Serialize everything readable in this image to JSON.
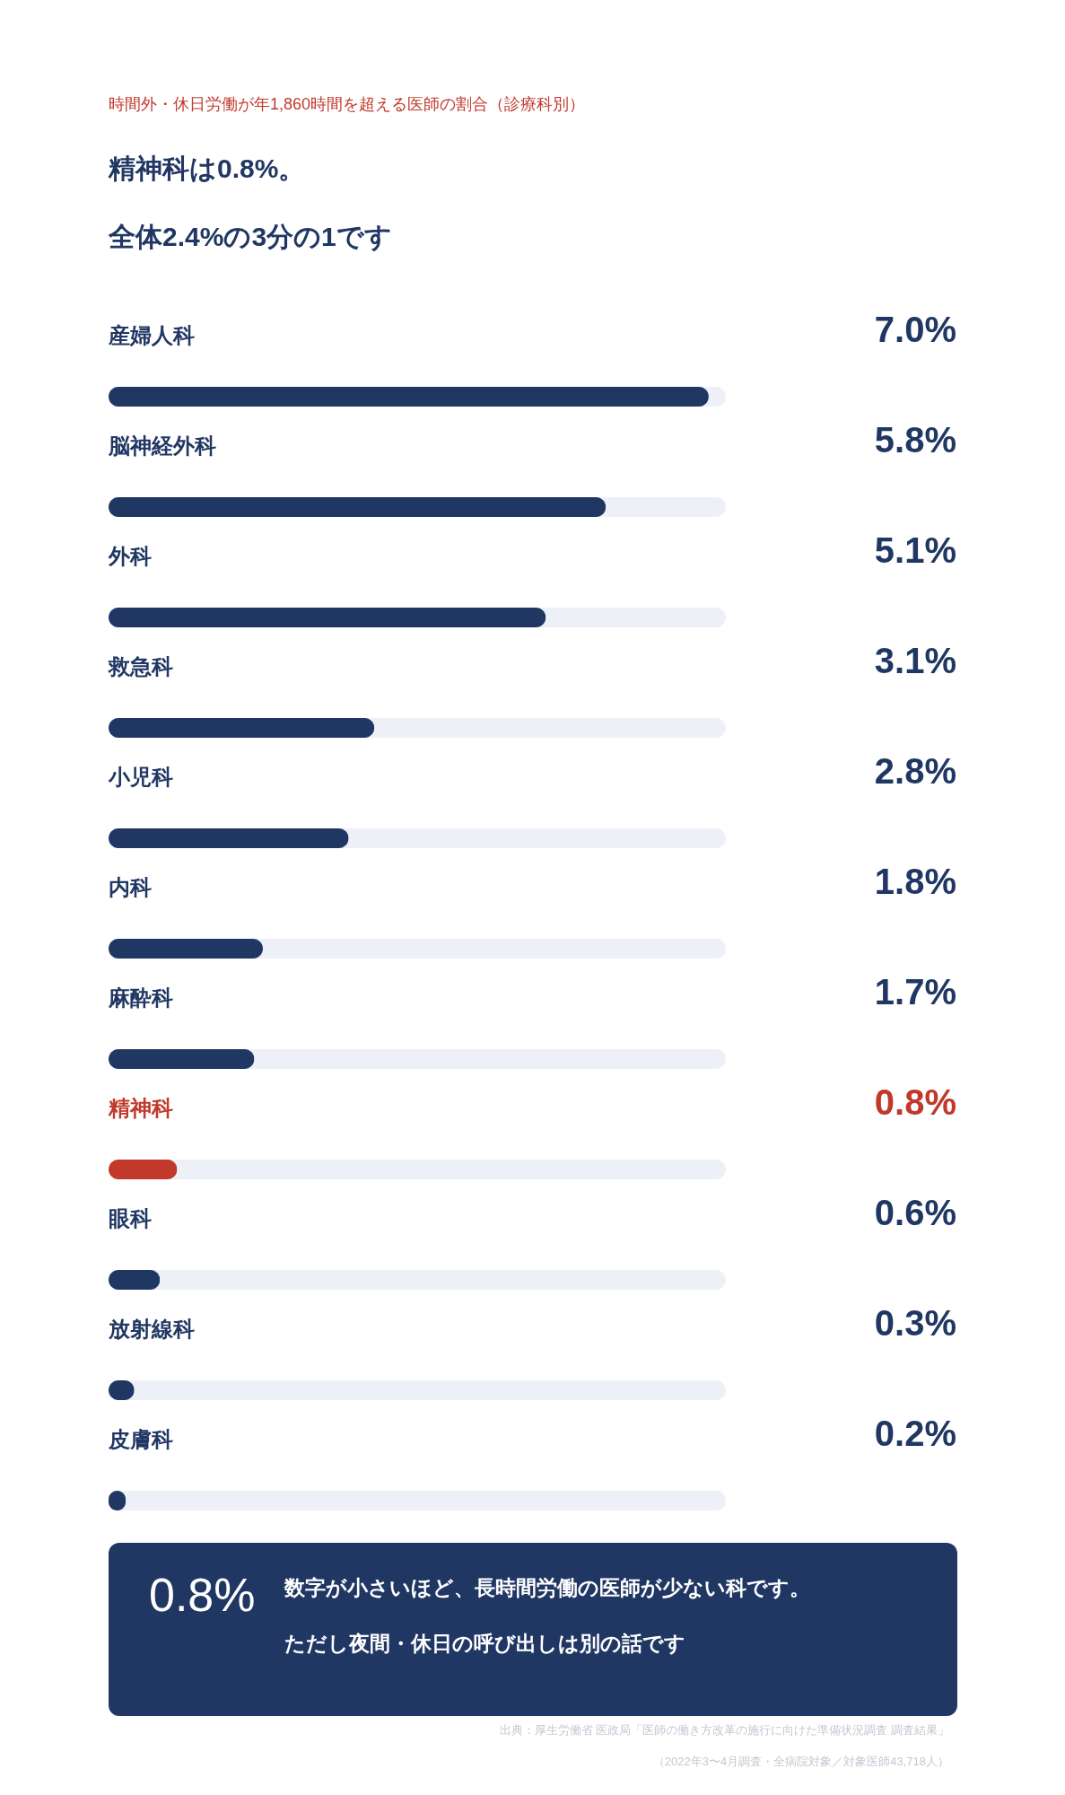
{
  "chart_data": {
    "type": "bar",
    "orientation": "horizontal",
    "title": "時間外・休日労働が年1,860時間を超える医師の割合（診療科別）",
    "subtitle": "精神科は0.8%。全体2.4%の3分の1です",
    "categories": [
      "産婦人科",
      "脳神経外科",
      "外科",
      "救急科",
      "小児科",
      "内科",
      "麻酔科",
      "精神科",
      "眼科",
      "放射線科",
      "皮膚科"
    ],
    "values": [
      7.0,
      5.8,
      5.1,
      3.1,
      2.8,
      1.8,
      1.7,
      0.8,
      0.6,
      0.3,
      0.2
    ],
    "colors": [
      "#213763",
      "#213763",
      "#213763",
      "#213763",
      "#213763",
      "#213763",
      "#213763",
      "#c0392b",
      "#213763",
      "#213763",
      "#213763"
    ],
    "value_labels": [
      "7.0%",
      "5.8%",
      "5.1%",
      "3.1%",
      "2.8%",
      "1.8%",
      "1.7%",
      "0.8%",
      "0.6%",
      "0.3%",
      "0.2%"
    ],
    "xlim": [
      0,
      7.2
    ],
    "annotations": [
      "0.8%",
      "数字が小さいほど、長時間労働の医師が少ない科です。",
      "ただし夜間・休日の呼び出しは別の話です",
      "出典：厚生労働省 医政局「医師の働き方改革の施行に向けた準備状況調査 調査結果」",
      "（2022年3〜4月調査・全病院対象／対象医師43,718人）"
    ]
  }
}
